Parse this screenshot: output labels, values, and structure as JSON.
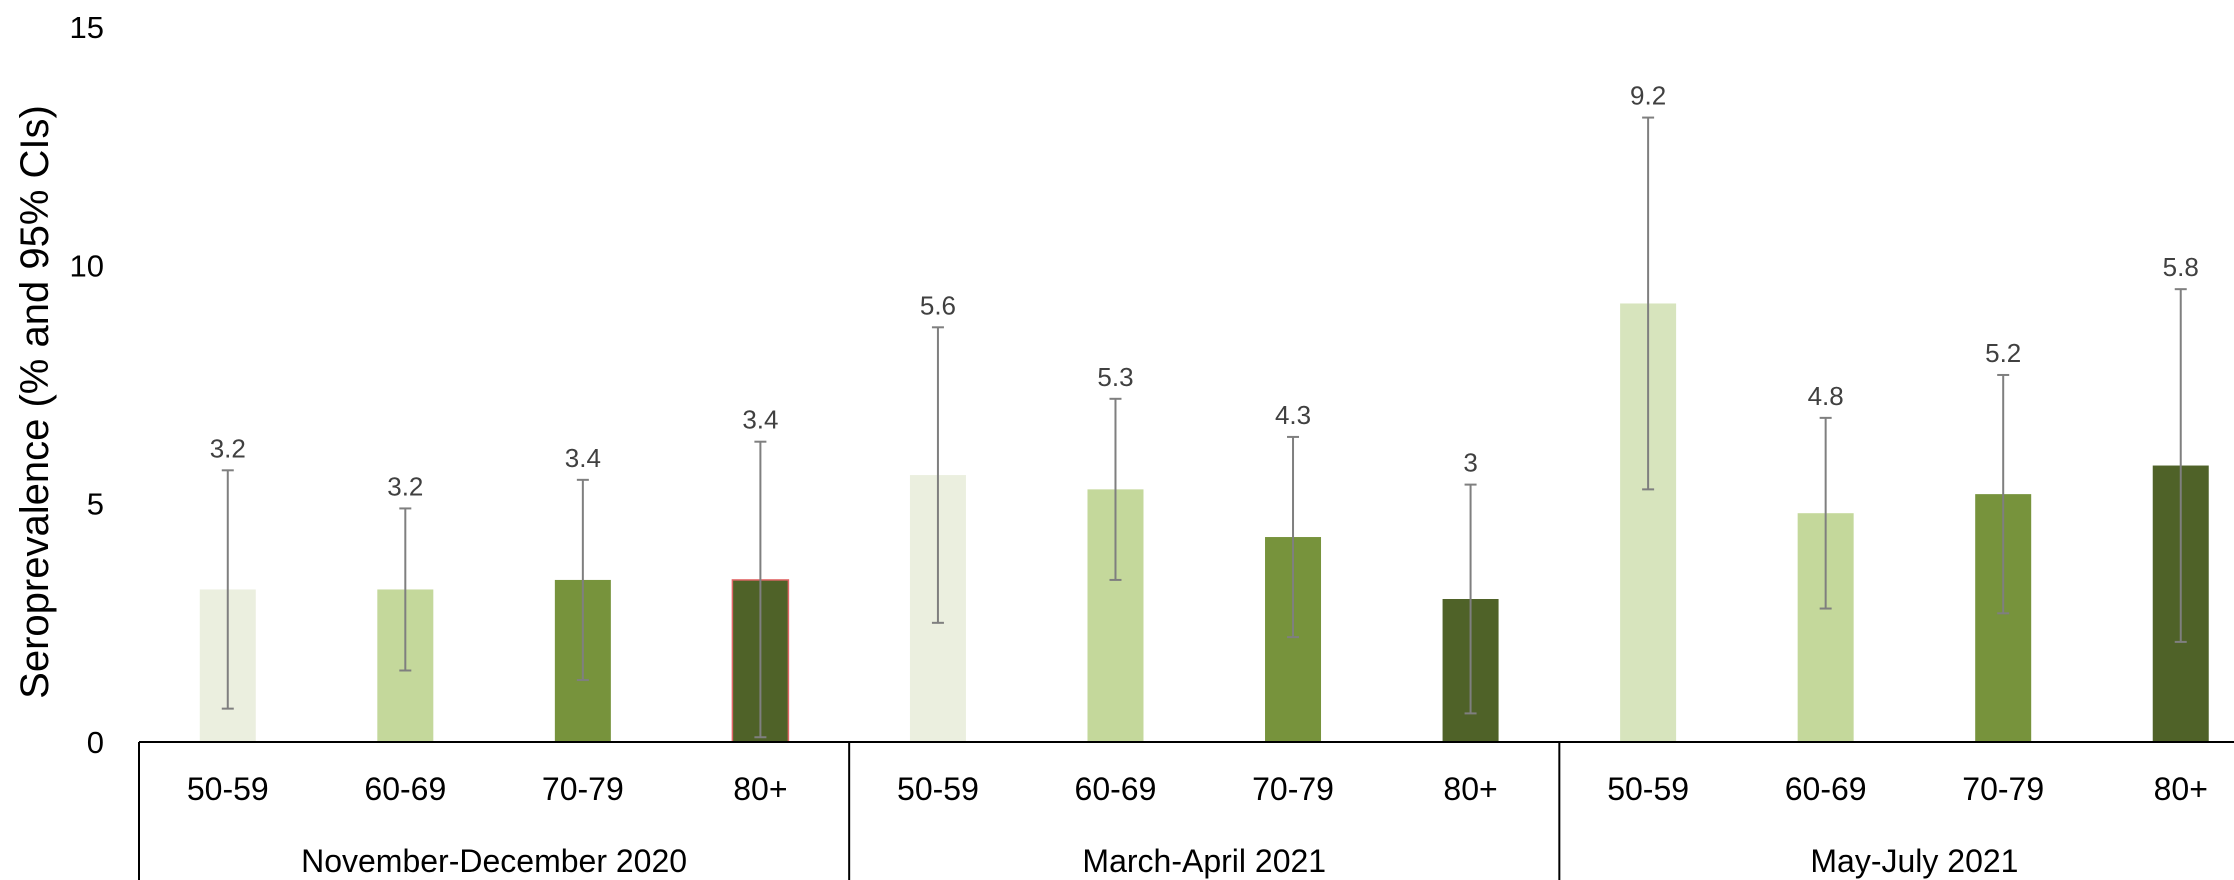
{
  "chart_data": {
    "type": "bar",
    "title": "",
    "ylabel": "Seroprevalence (% and 95% CIs)",
    "xlabel": "",
    "ylim": [
      0,
      15
    ],
    "yticks": [
      "0",
      "5",
      "10",
      "15"
    ],
    "grid": false,
    "legend": "none",
    "groups": [
      {
        "name": "November-December 2020",
        "bars": [
          {
            "category": "50-59",
            "value": 3.2,
            "label": "3.2",
            "ci": [
              0.7,
              5.7
            ],
            "color": "#EBEFDF"
          },
          {
            "category": "60-69",
            "value": 3.2,
            "label": "3.2",
            "ci": [
              1.5,
              4.9
            ],
            "color": "#C4D89B"
          },
          {
            "category": "70-79",
            "value": 3.4,
            "label": "3.4",
            "ci": [
              1.3,
              5.5
            ],
            "color": "#77933C"
          },
          {
            "category": "80+",
            "value": 3.4,
            "label": "3.4",
            "ci": [
              0.1,
              6.3
            ],
            "color": "#4F6228"
          }
        ]
      },
      {
        "name": "March-April 2021",
        "bars": [
          {
            "category": "50-59",
            "value": 5.6,
            "label": "5.6",
            "ci": [
              2.5,
              8.7
            ],
            "color": "#EBEFDF"
          },
          {
            "category": "60-69",
            "value": 5.3,
            "label": "5.3",
            "ci": [
              3.4,
              7.2
            ],
            "color": "#C4D89B"
          },
          {
            "category": "70-79",
            "value": 4.3,
            "label": "4.3",
            "ci": [
              2.2,
              6.4
            ],
            "color": "#77933C"
          },
          {
            "category": "80+",
            "value": 3.0,
            "label": "3",
            "ci": [
              0.6,
              5.4
            ],
            "color": "#4F6228"
          }
        ]
      },
      {
        "name": "May-July 2021",
        "bars": [
          {
            "category": "50-59",
            "value": 9.2,
            "label": "9.2",
            "ci": [
              5.3,
              13.1
            ],
            "color": "#D7E4BD"
          },
          {
            "category": "60-69",
            "value": 4.8,
            "label": "4.8",
            "ci": [
              2.8,
              6.8
            ],
            "color": "#C4D89B"
          },
          {
            "category": "70-79",
            "value": 5.2,
            "label": "5.2",
            "ci": [
              2.7,
              7.7
            ],
            "color": "#77933C"
          },
          {
            "category": "80+",
            "value": 5.8,
            "label": "5.8",
            "ci": [
              2.1,
              9.5
            ],
            "color": "#4F6228"
          }
        ]
      }
    ]
  }
}
